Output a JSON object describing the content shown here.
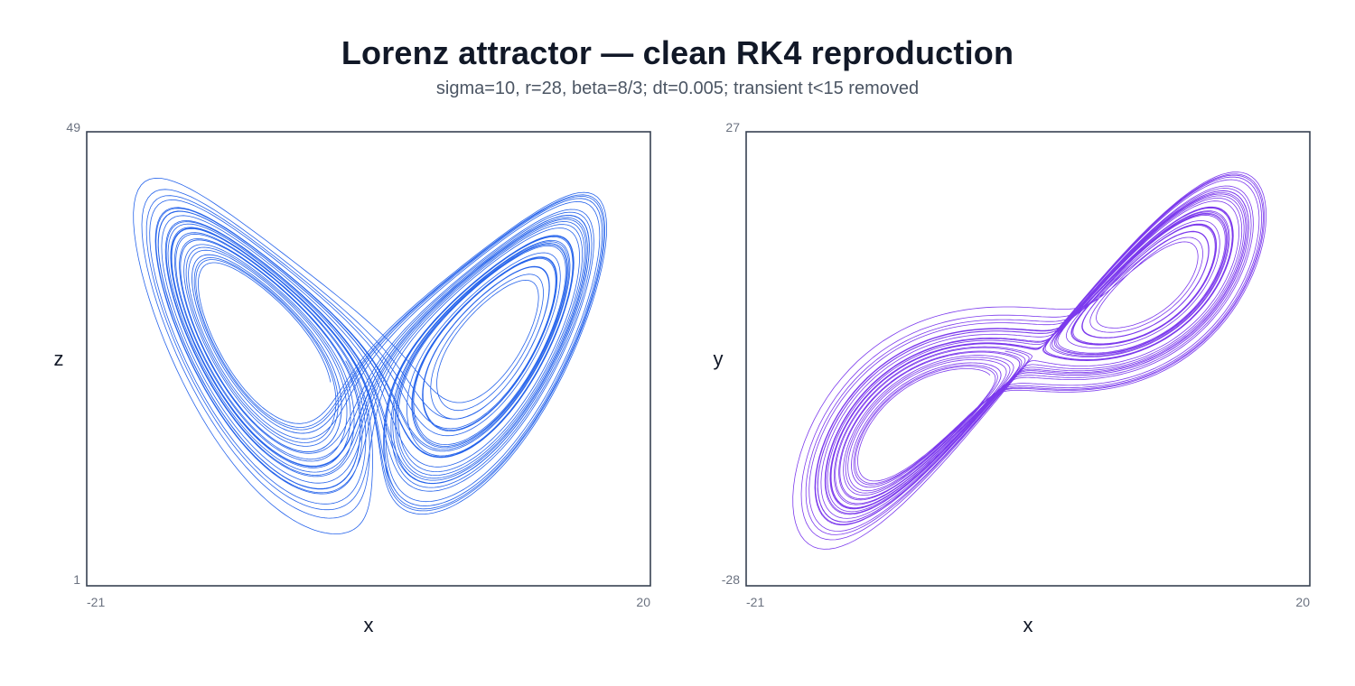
{
  "title": "Lorenz attractor — clean RK4 reproduction",
  "subtitle": "sigma=10, r=28, beta=8/3; dt=0.005; transient t<15 removed",
  "chart_data": [
    {
      "type": "line",
      "xlabel": "x",
      "ylabel": "z",
      "xlim": [
        -21,
        20
      ],
      "ylim": [
        1,
        49
      ],
      "x_ticks": [
        "-21",
        "20"
      ],
      "y_ticks": [
        "1",
        "49"
      ],
      "color": "#2563eb",
      "series": [
        {
          "x_variable": "x",
          "y_variable": "z",
          "generator": "Lorenz RK4 trajectory projected onto x–z",
          "sigma": 10,
          "r": 28,
          "beta": 2.6667,
          "dt": 0.005,
          "transient_removed_t": 15
        }
      ]
    },
    {
      "type": "line",
      "xlabel": "x",
      "ylabel": "y",
      "xlim": [
        -21,
        20
      ],
      "ylim": [
        -28,
        27
      ],
      "x_ticks": [
        "-21",
        "20"
      ],
      "y_ticks": [
        "-28",
        "27"
      ],
      "color": "#7c3aed",
      "series": [
        {
          "x_variable": "x",
          "y_variable": "y",
          "generator": "Lorenz RK4 trajectory projected onto x–y",
          "sigma": 10,
          "r": 28,
          "beta": 2.6667,
          "dt": 0.005,
          "transient_removed_t": 15
        }
      ]
    }
  ]
}
